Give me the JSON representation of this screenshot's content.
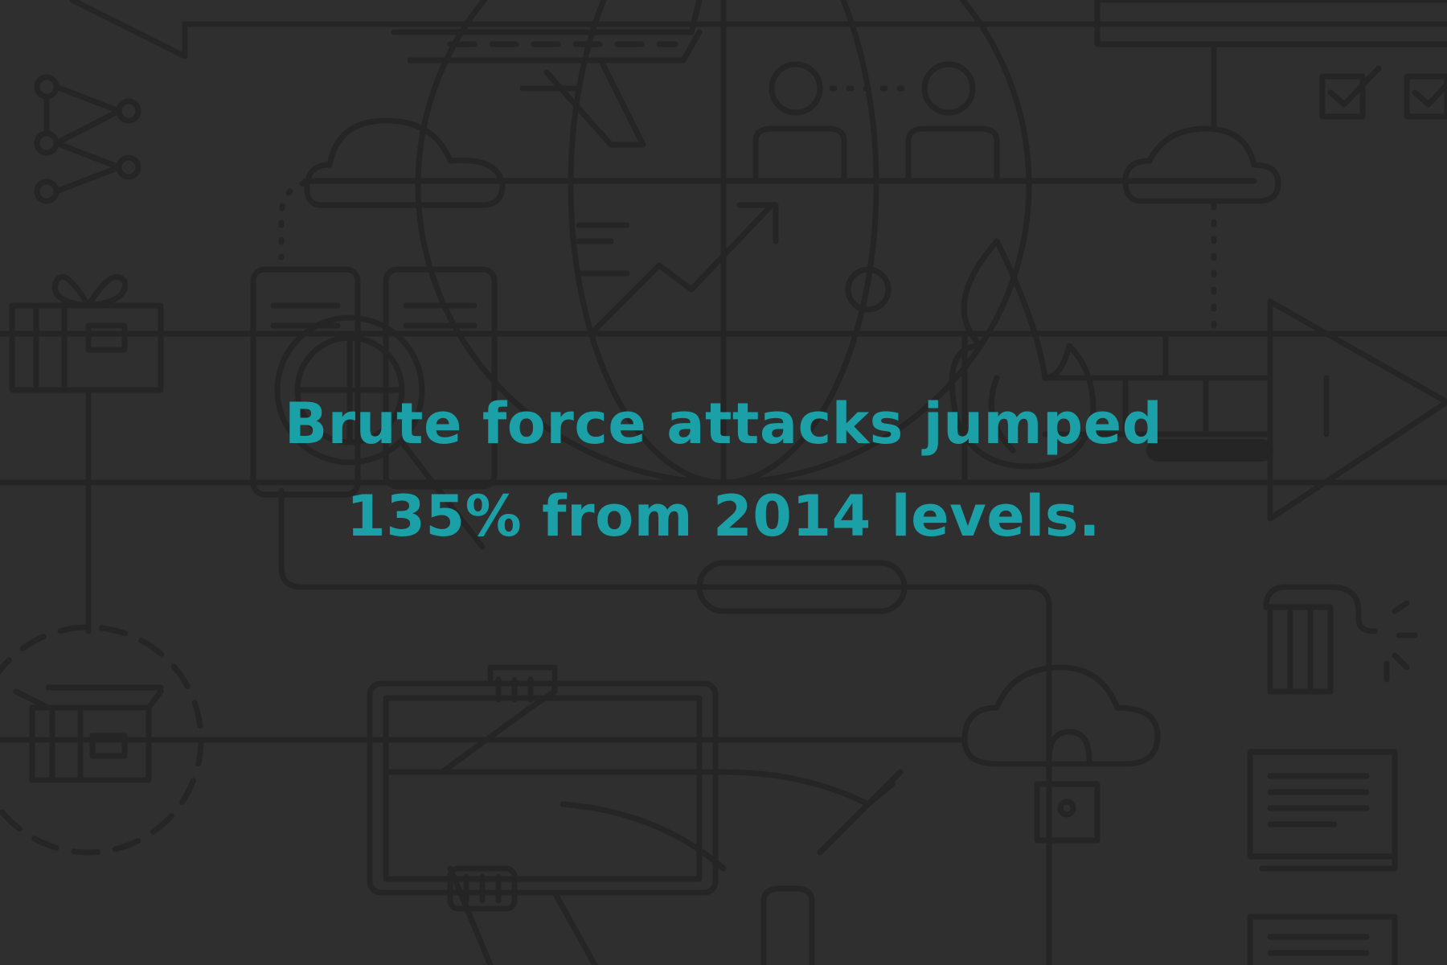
{
  "headline": {
    "line1": "Brute force attacks jumped",
    "line2": "135% from 2014 levels.",
    "color": "#1aa0a6"
  },
  "background": {
    "color": "#302f30",
    "line_art_color": "#262526",
    "icons": [
      "airplane-icon",
      "globe-icon",
      "network-nodes-icon",
      "cloud-icon",
      "users-icon",
      "trend-arrow-icon",
      "document-icon",
      "bug-magnifier-icon",
      "flame-icon",
      "firewall-arrow-icon",
      "gift-box-icon",
      "open-box-icon",
      "computer-monitor-icon",
      "cloud-lock-icon",
      "dynamite-icon",
      "stacked-documents-icon",
      "checkbox-icon"
    ]
  }
}
